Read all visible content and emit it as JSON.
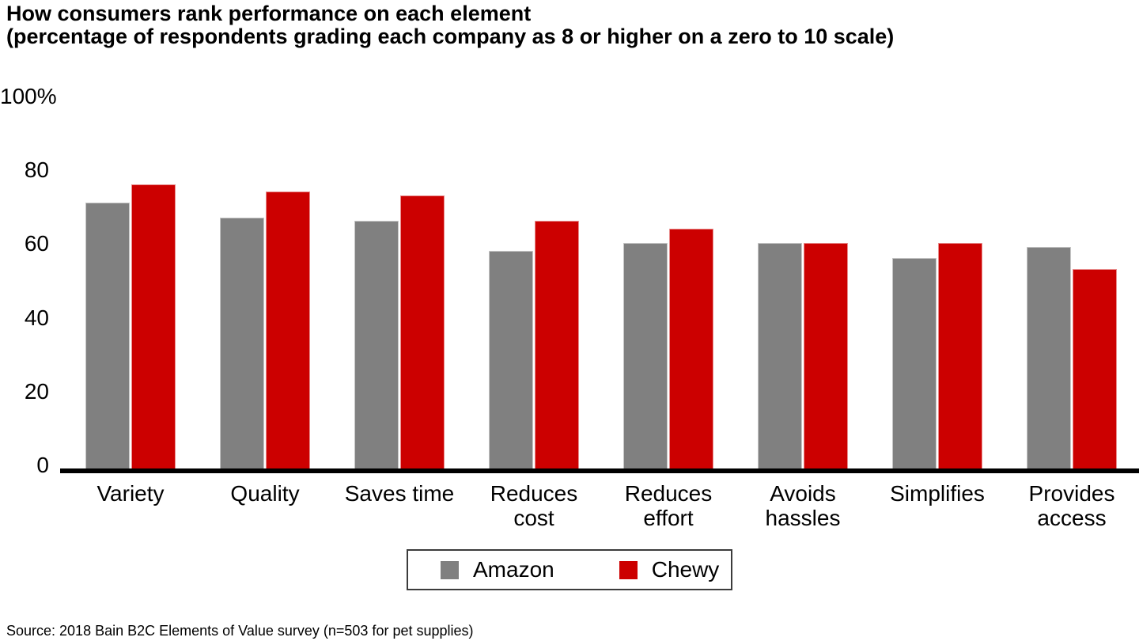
{
  "title": {
    "line1": "How consumers rank performance on each element",
    "line2": "(percentage of respondents grading each company as 8 or higher on a zero to 10 scale)"
  },
  "y_axis": {
    "tick_labels": [
      "100%",
      "80",
      "60",
      "40",
      "20",
      "0"
    ],
    "tick_values": [
      100,
      80,
      60,
      40,
      20,
      0
    ]
  },
  "legend": {
    "items": [
      {
        "label": "Amazon",
        "color": "#808080"
      },
      {
        "label": "Chewy",
        "color": "#cc0000"
      }
    ]
  },
  "source_note": "Source: 2018 Bain B2C Elements of Value survey (n=503 for pet supplies)",
  "chart_data": {
    "type": "bar",
    "title": "How consumers rank performance on each element",
    "subtitle": "(percentage of respondents grading each company as 8 or higher on a zero to 10 scale)",
    "categories": [
      "Variety",
      "Quality",
      "Saves time",
      "Reduces cost",
      "Reduces effort",
      "Avoids hassles",
      "Simplifies",
      "Provides access"
    ],
    "category_label_lines": [
      [
        "Variety",
        ""
      ],
      [
        "Quality",
        ""
      ],
      [
        "Saves time",
        ""
      ],
      [
        "Reduces",
        "cost"
      ],
      [
        "Reduces",
        "effort"
      ],
      [
        "Avoids",
        "hassles"
      ],
      [
        "Simplifies",
        ""
      ],
      [
        "Provides",
        "access"
      ]
    ],
    "series": [
      {
        "name": "Amazon",
        "color": "#808080",
        "values": [
          72,
          68,
          67,
          59,
          61,
          61,
          57,
          60
        ]
      },
      {
        "name": "Chewy",
        "color": "#cc0000",
        "values": [
          77,
          75,
          74,
          67,
          65,
          61,
          61,
          54
        ]
      }
    ],
    "ylabel": "",
    "xlabel": "",
    "ylim": [
      0,
      100
    ],
    "yticks": [
      0,
      20,
      40,
      60,
      80,
      100
    ],
    "grid": false,
    "legend_position": "bottom",
    "axis_line_color": "#000000",
    "source": "Source: 2018 Bain B2C Elements of Value survey (n=503 for pet supplies)"
  }
}
